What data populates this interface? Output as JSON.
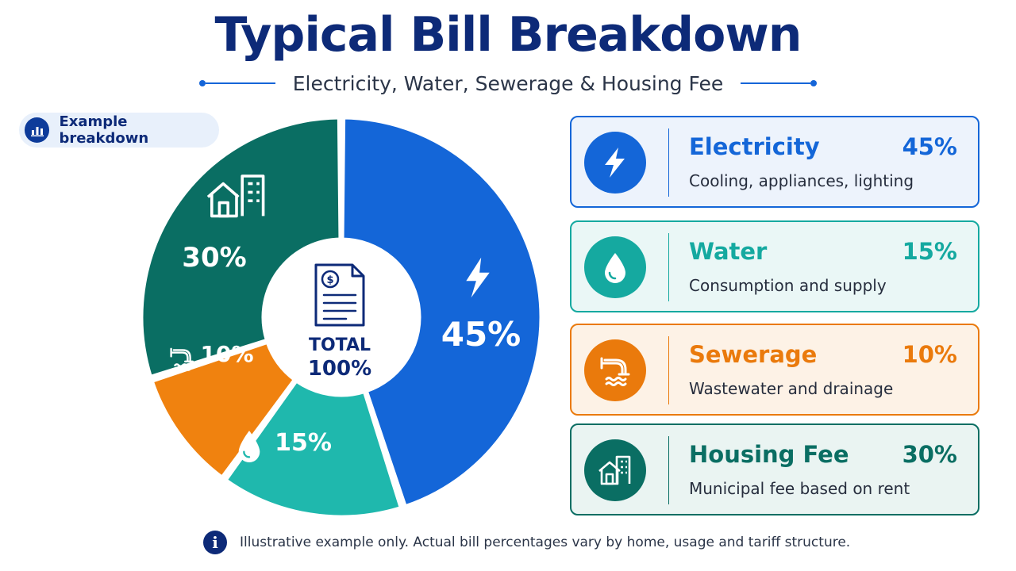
{
  "header": {
    "title": "Typical Bill Breakdown",
    "subtitle": "Electricity, Water, Sewerage & Housing Fee"
  },
  "badge": {
    "label": "Example breakdown",
    "icon": "bar-chart-icon"
  },
  "chart_data": {
    "type": "pie",
    "variant": "donut",
    "categories": [
      "Electricity",
      "Water",
      "Sewerage",
      "Housing Fee"
    ],
    "values": [
      45,
      15,
      10,
      30
    ],
    "value_labels": [
      "45%",
      "15%",
      "10%",
      "30%"
    ],
    "colors": [
      "#1466d8",
      "#1fb8ad",
      "#f0820f",
      "#0a6e63"
    ],
    "icons": [
      "lightning-icon",
      "water-drop-icon",
      "pipe-icon",
      "house-building-icon"
    ],
    "center": {
      "icon": "document-dollar-icon",
      "line1": "TOTAL",
      "line2": "100%"
    }
  },
  "legend": {
    "items": [
      {
        "name": "Electricity",
        "pct": "45%",
        "desc": "Cooling, appliances, lighting",
        "color": "#1466d8",
        "bg": "#edf3fc",
        "icon": "lightning-icon"
      },
      {
        "name": "Water",
        "pct": "15%",
        "desc": "Consumption and supply",
        "color": "#15a9a0",
        "bg": "#eaf7f6",
        "icon": "water-drop-icon"
      },
      {
        "name": "Sewerage",
        "pct": "10%",
        "desc": "Wastewater and drainage",
        "color": "#ea7a0c",
        "bg": "#fdf2e6",
        "icon": "pipe-icon"
      },
      {
        "name": "Housing Fee",
        "pct": "30%",
        "desc": "Municipal fee based on rent",
        "color": "#0a6e63",
        "bg": "#eaf4f2",
        "icon": "house-building-icon"
      }
    ]
  },
  "footer": {
    "note": "Illustrative example only. Actual bill percentages vary by home, usage and tariff structure.",
    "icon": "info-icon"
  }
}
